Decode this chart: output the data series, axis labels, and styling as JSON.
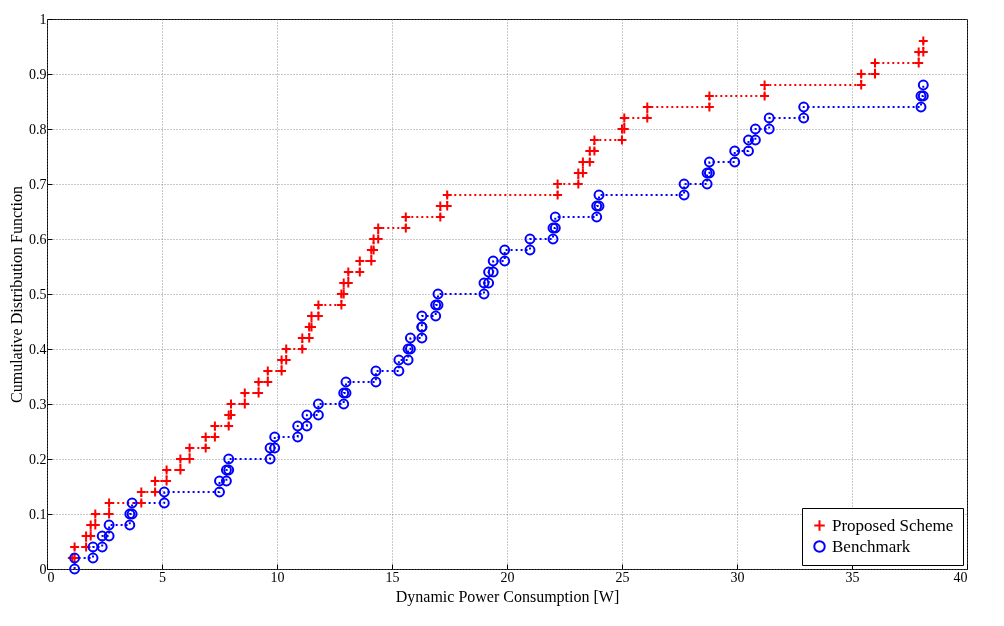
{
  "chart_data": {
    "type": "step",
    "xlabel": "Dynamic Power Consumption [W]",
    "ylabel": "Cumulative Distribution Function",
    "xlim": [
      0,
      40
    ],
    "ylim": [
      0,
      1
    ],
    "xticks": [
      0,
      5,
      10,
      15,
      20,
      25,
      30,
      35,
      40
    ],
    "yticks": [
      0,
      0.1,
      0.2,
      0.3,
      0.4,
      0.5,
      0.6,
      0.7,
      0.8,
      0.9,
      1
    ],
    "grid": true,
    "legend": "bottom right",
    "line_style": "dotted",
    "series": [
      {
        "name": "Proposed Scheme",
        "color": "#ff0000",
        "marker": "cross",
        "x": [
          1.1,
          1.2,
          1.2,
          1.7,
          1.7,
          1.9,
          1.9,
          2.1,
          2.1,
          2.7,
          2.7,
          4.1,
          4.1,
          4.7,
          4.7,
          5.2,
          5.2,
          5.8,
          5.8,
          6.2,
          6.2,
          6.9,
          6.9,
          7.3,
          7.3,
          7.9,
          7.9,
          8.0,
          8.0,
          8.6,
          8.6,
          9.2,
          9.2,
          9.6,
          9.6,
          10.2,
          10.2,
          10.4,
          10.4,
          11.1,
          11.1,
          11.4,
          11.4,
          11.5,
          11.5,
          11.8,
          11.8,
          12.8,
          12.8,
          12.9,
          12.9,
          13.1,
          13.1,
          13.6,
          13.6,
          14.1,
          14.1,
          14.2,
          14.2,
          14.4,
          14.4,
          15.6,
          15.6,
          17.1,
          17.1,
          17.4,
          17.4,
          22.2,
          22.2,
          23.1,
          23.1,
          23.3,
          23.3,
          23.6,
          23.6,
          23.8,
          23.8,
          25.0,
          25.0,
          25.1,
          25.1,
          26.1,
          26.1,
          28.8,
          28.8,
          31.2,
          31.2,
          35.4,
          35.4,
          36.0,
          36.0,
          37.9,
          37.9,
          38.1,
          38.1
        ],
        "values": [
          0.02,
          0.02,
          0.04,
          0.04,
          0.06,
          0.06,
          0.08,
          0.08,
          0.1,
          0.1,
          0.12,
          0.12,
          0.14,
          0.14,
          0.16,
          0.16,
          0.18,
          0.18,
          0.2,
          0.2,
          0.22,
          0.22,
          0.24,
          0.24,
          0.26,
          0.26,
          0.28,
          0.28,
          0.3,
          0.3,
          0.32,
          0.32,
          0.34,
          0.34,
          0.36,
          0.36,
          0.38,
          0.38,
          0.4,
          0.4,
          0.42,
          0.42,
          0.44,
          0.44,
          0.46,
          0.46,
          0.48,
          0.48,
          0.5,
          0.5,
          0.52,
          0.52,
          0.54,
          0.54,
          0.56,
          0.56,
          0.58,
          0.58,
          0.6,
          0.6,
          0.62,
          0.62,
          0.64,
          0.64,
          0.66,
          0.66,
          0.68,
          0.68,
          0.7,
          0.7,
          0.72,
          0.72,
          0.74,
          0.74,
          0.76,
          0.76,
          0.78,
          0.78,
          0.8,
          0.8,
          0.82,
          0.82,
          0.84,
          0.84,
          0.86,
          0.86,
          0.88,
          0.88,
          0.9,
          0.9,
          0.92,
          0.92,
          0.94,
          0.94,
          0.96
        ]
      },
      {
        "name": "Benchmark",
        "color": "#0000ff",
        "marker": "circle",
        "x": [
          1.2,
          1.2,
          2.0,
          2.0,
          2.4,
          2.4,
          2.7,
          2.7,
          3.6,
          3.6,
          3.7,
          3.7,
          5.1,
          5.1,
          7.5,
          7.5,
          7.8,
          7.8,
          7.9,
          7.9,
          9.7,
          9.7,
          9.9,
          9.9,
          10.9,
          10.9,
          11.3,
          11.3,
          11.8,
          11.8,
          12.9,
          12.9,
          13.0,
          13.0,
          14.3,
          14.3,
          15.3,
          15.3,
          15.7,
          15.7,
          15.8,
          15.8,
          16.3,
          16.3,
          16.3,
          16.3,
          16.9,
          16.9,
          17.0,
          17.0,
          19.0,
          19.0,
          19.2,
          19.2,
          19.4,
          19.4,
          19.9,
          19.9,
          21.0,
          21.0,
          22.0,
          22.0,
          22.1,
          22.1,
          23.9,
          23.9,
          24.0,
          24.0,
          27.7,
          27.7,
          28.7,
          28.7,
          28.8,
          28.8,
          29.9,
          29.9,
          30.5,
          30.5,
          30.8,
          30.8,
          31.4,
          31.4,
          32.9,
          32.9,
          38.0,
          38.0,
          38.1,
          38.1
        ],
        "values": [
          0,
          0.02,
          0.02,
          0.04,
          0.04,
          0.06,
          0.06,
          0.08,
          0.08,
          0.1,
          0.1,
          0.12,
          0.12,
          0.14,
          0.14,
          0.16,
          0.16,
          0.18,
          0.18,
          0.2,
          0.2,
          0.22,
          0.22,
          0.24,
          0.24,
          0.26,
          0.26,
          0.28,
          0.28,
          0.3,
          0.3,
          0.32,
          0.32,
          0.34,
          0.34,
          0.36,
          0.36,
          0.38,
          0.38,
          0.4,
          0.4,
          0.42,
          0.42,
          0.44,
          0.44,
          0.46,
          0.46,
          0.48,
          0.48,
          0.5,
          0.5,
          0.52,
          0.52,
          0.54,
          0.54,
          0.56,
          0.56,
          0.58,
          0.58,
          0.6,
          0.6,
          0.62,
          0.62,
          0.64,
          0.64,
          0.66,
          0.66,
          0.68,
          0.68,
          0.7,
          0.7,
          0.72,
          0.72,
          0.74,
          0.74,
          0.76,
          0.76,
          0.78,
          0.78,
          0.8,
          0.8,
          0.82,
          0.82,
          0.84,
          0.84,
          0.86,
          0.86,
          0.88
        ]
      }
    ]
  }
}
